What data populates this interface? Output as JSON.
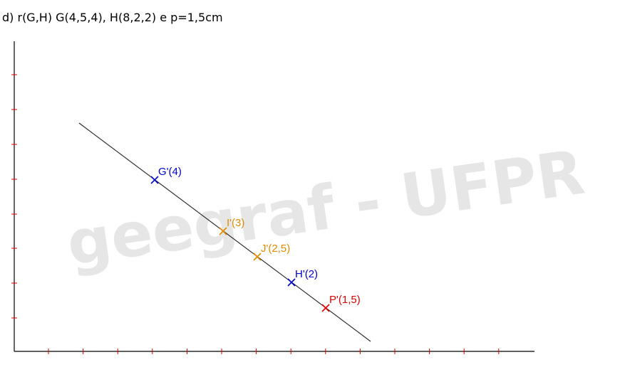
{
  "heading": "d) r(G,H)  G(4,5,4), H(8,2,2) e p=1,5cm",
  "watermark": "geegraf - UFPR",
  "colors": {
    "axis": "#000000",
    "tick": "#e00000",
    "line": "#222222",
    "watermark": "#e6e6e6",
    "blue": "#0000cc",
    "orange": "#e08a00",
    "red": "#e00000"
  },
  "points": [
    {
      "id": "G",
      "label": "G'(4)",
      "color": "#0000cc",
      "icon": "cross-marker"
    },
    {
      "id": "I",
      "label": "I'(3)",
      "color": "#e08a00",
      "icon": "cross-marker"
    },
    {
      "id": "J",
      "label": "J'(2,5)",
      "color": "#e08a00",
      "icon": "cross-marker"
    },
    {
      "id": "H",
      "label": "H'(2)",
      "color": "#0000cc",
      "icon": "cross-marker"
    },
    {
      "id": "P",
      "label": "P'(1,5)",
      "color": "#e00000",
      "icon": "cross-marker"
    }
  ]
}
